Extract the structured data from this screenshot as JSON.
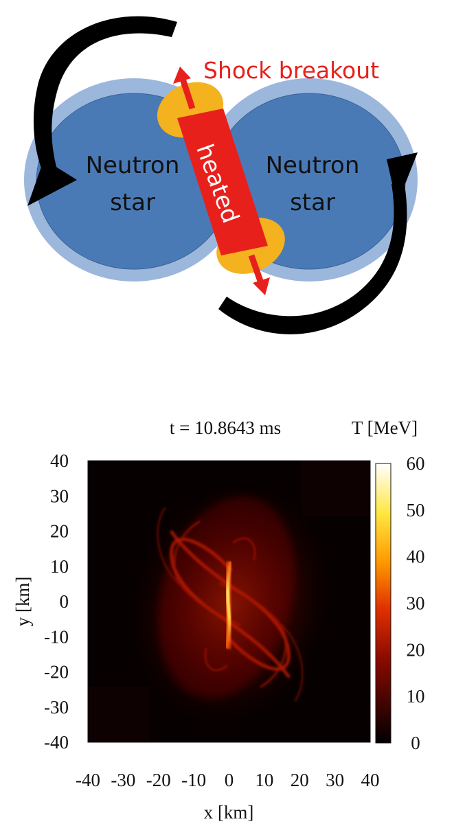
{
  "diagram": {
    "left_star_label": [
      "Neutron",
      "star"
    ],
    "right_star_label": [
      "Neutron",
      "star"
    ],
    "heated_label": "heated",
    "shock_label": "Shock breakout",
    "colors": {
      "star_fill": "#4a7ab5",
      "star_halo": "#9cb7dc",
      "heated_fill": "#e8201c",
      "shock_region": "#f4b21e",
      "shock_text": "#e8201c",
      "orbit_arrow": "#000000"
    }
  },
  "plot": {
    "time_label": "t = 10.8643 ms",
    "colorbar_title": "T [MeV]",
    "xlabel": "x [km]",
    "ylabel": "y [km]",
    "x_ticks": [
      "-40",
      "-30",
      "-20",
      "-10",
      "0",
      "10",
      "20",
      "30",
      "40"
    ],
    "y_ticks": [
      "40",
      "30",
      "20",
      "10",
      "0",
      "-10",
      "-20",
      "-30",
      "-40"
    ],
    "cbar_ticks": [
      "60",
      "50",
      "40",
      "30",
      "20",
      "10",
      "0"
    ]
  },
  "chart_data": {
    "type": "heatmap",
    "title": "t = 10.8643 ms",
    "xlabel": "x [km]",
    "ylabel": "y [km]",
    "xlim": [
      -40,
      40
    ],
    "ylim": [
      -40,
      40
    ],
    "colorbar": {
      "label": "T [MeV]",
      "range": [
        0,
        60
      ],
      "ticks": [
        0,
        10,
        20,
        30,
        40,
        50,
        60
      ]
    },
    "colormap": "black-red-yellow-white",
    "grid": false
  }
}
